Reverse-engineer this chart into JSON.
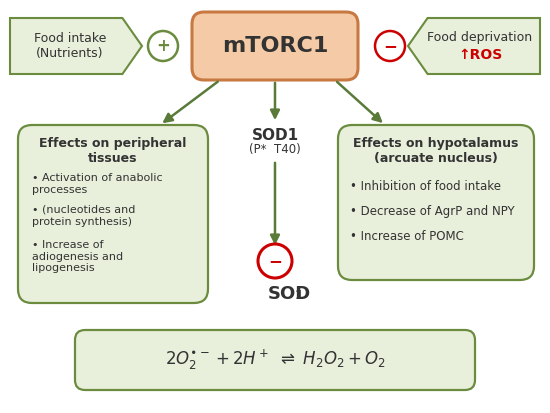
{
  "bg_color": "#ffffff",
  "green_fill": "#e8f0dc",
  "green_edge": "#6b8c3e",
  "orange_fill": "#f5cba7",
  "orange_edge": "#c87941",
  "red_color": "#cc0000",
  "arrow_color": "#5a7a3a",
  "text_color": "#333333",
  "mtorc1_text": "mTORC1",
  "food_intake_text": "Food intake\n(Nutrients)",
  "food_deprivation_line1": "Food deprivation",
  "food_deprivation_line2": "↑ROS",
  "peripheral_title": "Effects on peripheral\ntissues",
  "peripheral_bullets": [
    "Activation of anabolic\nprocesses",
    "(nucleotides and\nprotein synthesis)",
    "Increase of\nadiogenesis and\nlipogenesis"
  ],
  "hypothalamus_title": "Effects on hypotalamus\n(arcuate nucleus)",
  "hypothalamus_bullets": [
    "Inhibition of food intake",
    "Decrease of AgrP and NPY",
    "Increase of POMC"
  ]
}
